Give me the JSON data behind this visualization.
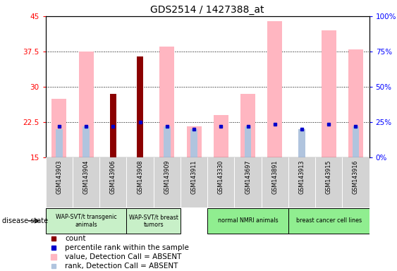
{
  "title": "GDS2514 / 1427388_at",
  "samples": [
    "GSM143903",
    "GSM143904",
    "GSM143906",
    "GSM143908",
    "GSM143909",
    "GSM143911",
    "GSM143330",
    "GSM143697",
    "GSM143891",
    "GSM143913",
    "GSM143915",
    "GSM143916"
  ],
  "count_values": [
    null,
    null,
    28.5,
    36.5,
    null,
    null,
    null,
    null,
    null,
    null,
    null,
    null
  ],
  "rank_values": [
    21.5,
    21.5,
    21.5,
    22.5,
    21.5,
    21.0,
    21.5,
    21.5,
    22.0,
    21.0,
    22.0,
    21.5
  ],
  "value_absent": [
    27.5,
    37.5,
    null,
    null,
    38.5,
    21.5,
    24.0,
    28.5,
    44.0,
    null,
    42.0,
    38.0
  ],
  "rank_absent": [
    21.0,
    21.5,
    null,
    null,
    21.5,
    21.0,
    null,
    21.5,
    null,
    21.0,
    null,
    21.5
  ],
  "groups": [
    {
      "label": "WAP-SVT/t transgenic\nanimals",
      "start": 0,
      "end": 3,
      "color": "#c8f0c8"
    },
    {
      "label": "WAP-SVT/t breast\ntumors",
      "start": 3,
      "end": 5,
      "color": "#c8f0c8"
    },
    {
      "label": "normal NMRI animals",
      "start": 6,
      "end": 9,
      "color": "#90ee90"
    },
    {
      "label": "breast cancer cell lines",
      "start": 9,
      "end": 12,
      "color": "#90ee90"
    }
  ],
  "ylim_left": [
    15,
    45
  ],
  "ylim_right": [
    0,
    100
  ],
  "yticks_left": [
    15,
    22.5,
    30,
    37.5,
    45
  ],
  "yticks_right": [
    0,
    25,
    50,
    75,
    100
  ],
  "ytick_labels_left": [
    "15",
    "22.5",
    "30",
    "37.5",
    "45"
  ],
  "ytick_labels_right": [
    "0%",
    "25%",
    "50%",
    "75%",
    "100%"
  ],
  "pink_color": "#ffb6c1",
  "light_blue_color": "#b0c4de",
  "dark_red_color": "#8b0000",
  "blue_color": "#0000cc",
  "legend_items": [
    {
      "color": "#8b0000",
      "label": "count"
    },
    {
      "color": "#0000cc",
      "label": "percentile rank within the sample"
    },
    {
      "color": "#ffb6c1",
      "label": "value, Detection Call = ABSENT"
    },
    {
      "color": "#b0c4de",
      "label": "rank, Detection Call = ABSENT"
    }
  ]
}
